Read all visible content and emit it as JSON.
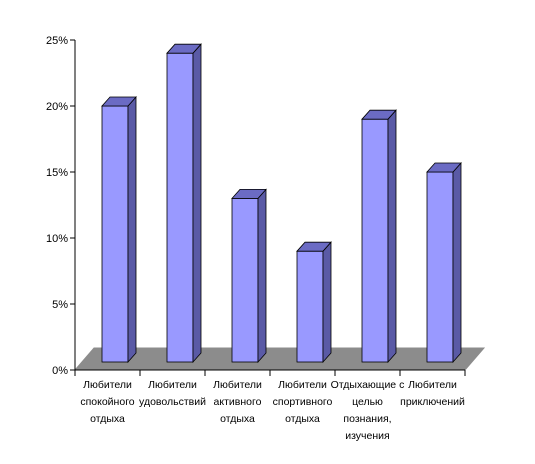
{
  "chart_data": {
    "type": "bar",
    "title": "",
    "xlabel": "",
    "ylabel": "",
    "ylim": [
      0,
      25
    ],
    "yticks": [
      0,
      5,
      10,
      15,
      20,
      25
    ],
    "ytick_format": "percent",
    "grid": false,
    "legend": "none",
    "style": "3d",
    "colors": {
      "bar_front": "#9999ff",
      "bar_top": "#6b6bc4",
      "bar_side": "#5a5aa6",
      "bar_stroke": "#000000",
      "floor": "#8c8c8c",
      "axis": "#000000"
    },
    "categories": [
      [
        "Любители",
        "спокойного",
        "отдыха"
      ],
      [
        "Любители",
        "удовольствий"
      ],
      [
        "Любители",
        "активного",
        "отдыха"
      ],
      [
        "Любители",
        "спортивного",
        "отдыха"
      ],
      [
        "Отдыхающие с",
        "целью",
        "познания,",
        "изучения"
      ],
      [
        "Любители",
        "приключений"
      ]
    ],
    "values": [
      20,
      24,
      13,
      9,
      19,
      15
    ]
  }
}
